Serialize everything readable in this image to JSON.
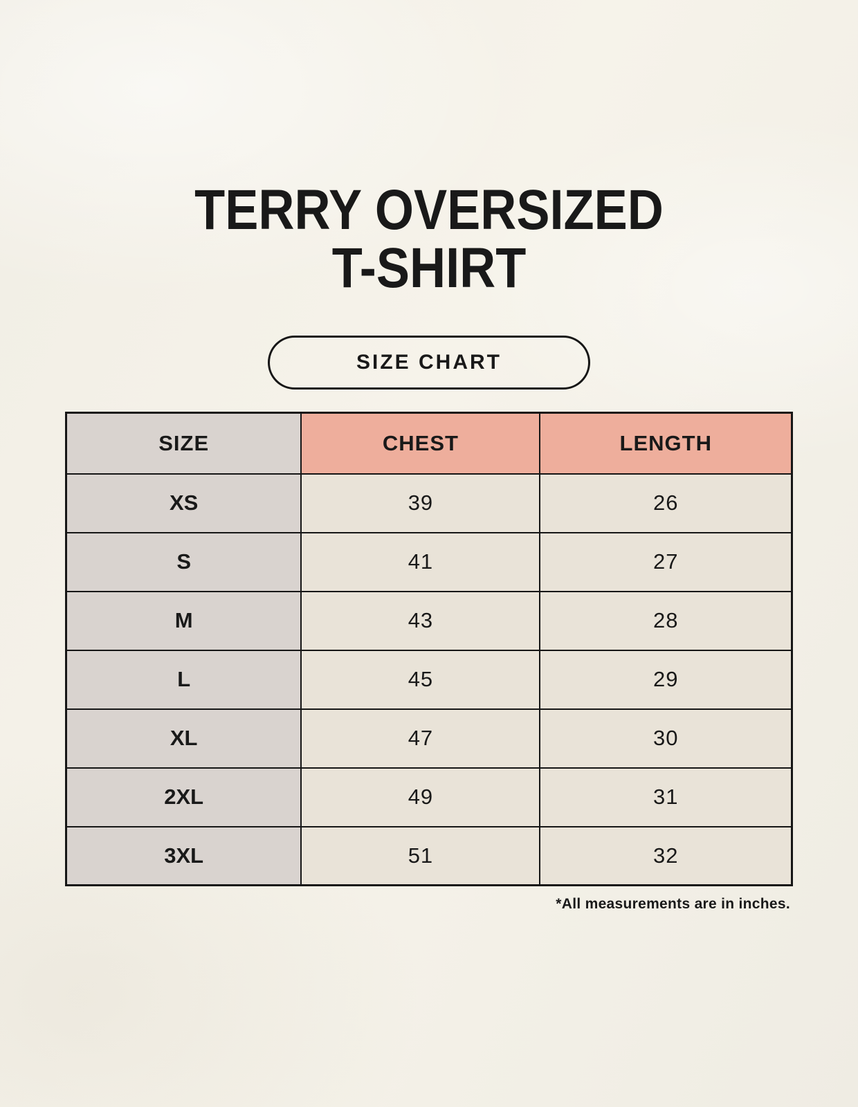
{
  "header": {
    "title_line1": "TERRY OVERSIZED",
    "title_line2": "T-SHIRT",
    "badge_label": "SIZE CHART"
  },
  "footnote": "*All measurements are in inches.",
  "colors": {
    "background": "#f3f0e7",
    "text": "#191919",
    "border": "#161616",
    "size_col_bg": "#d9d3cf",
    "measure_header_bg": "#eeae9c",
    "cell_bg": "#e9e3d8"
  },
  "chart_data": {
    "type": "table",
    "title": "TERRY OVERSIZED T-SHIRT",
    "columns": [
      "SIZE",
      "CHEST",
      "LENGTH"
    ],
    "rows": [
      {
        "size": "XS",
        "chest": 39,
        "length": 26
      },
      {
        "size": "S",
        "chest": 41,
        "length": 27
      },
      {
        "size": "M",
        "chest": 43,
        "length": 28
      },
      {
        "size": "L",
        "chest": 45,
        "length": 29
      },
      {
        "size": "XL",
        "chest": 47,
        "length": 30
      },
      {
        "size": "2XL",
        "chest": 49,
        "length": 31
      },
      {
        "size": "3XL",
        "chest": 51,
        "length": 32
      }
    ],
    "units": "inches"
  }
}
